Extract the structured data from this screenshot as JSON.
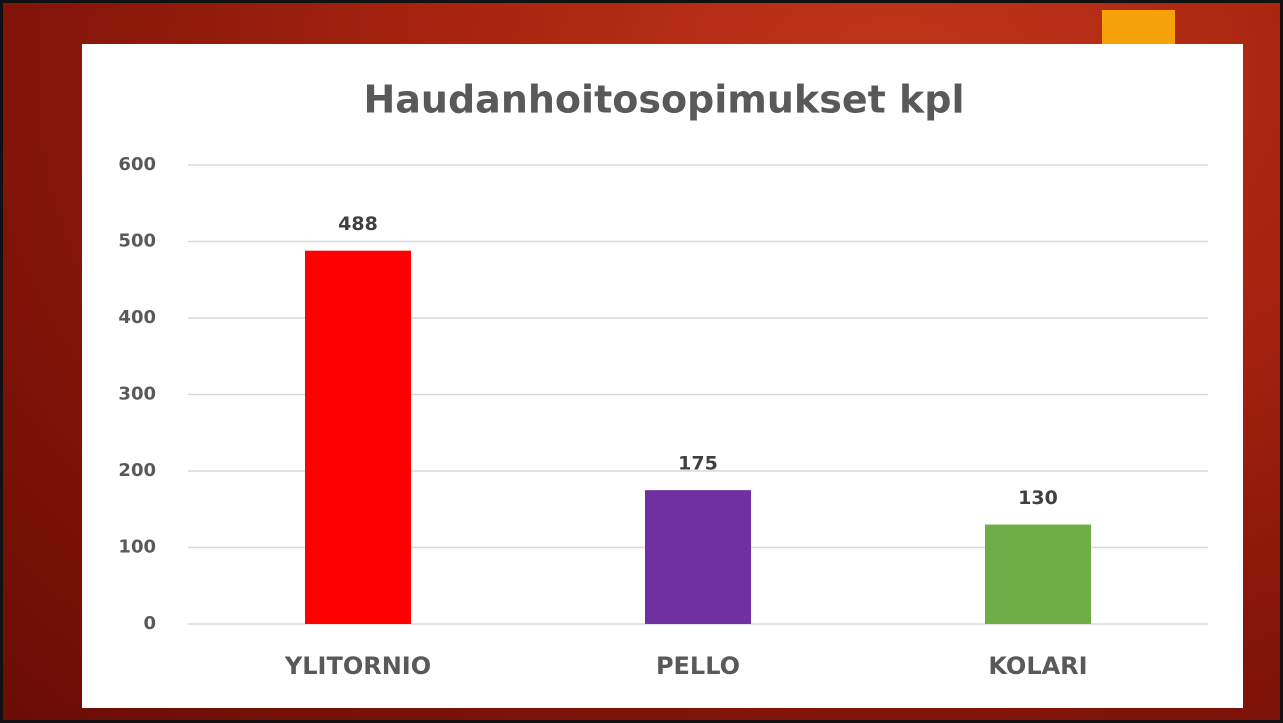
{
  "chart_data": {
    "type": "bar",
    "title": "Haudanhoitosopimukset kpl",
    "categories": [
      "YLITORNIO",
      "PELLO",
      "KOLARI"
    ],
    "values": [
      488,
      175,
      130
    ],
    "colors": [
      "#ff0000",
      "#7030a0",
      "#70ad47"
    ],
    "ylim": [
      0,
      600
    ],
    "yticks": [
      0,
      100,
      200,
      300,
      400,
      500,
      600
    ],
    "grid": true
  }
}
